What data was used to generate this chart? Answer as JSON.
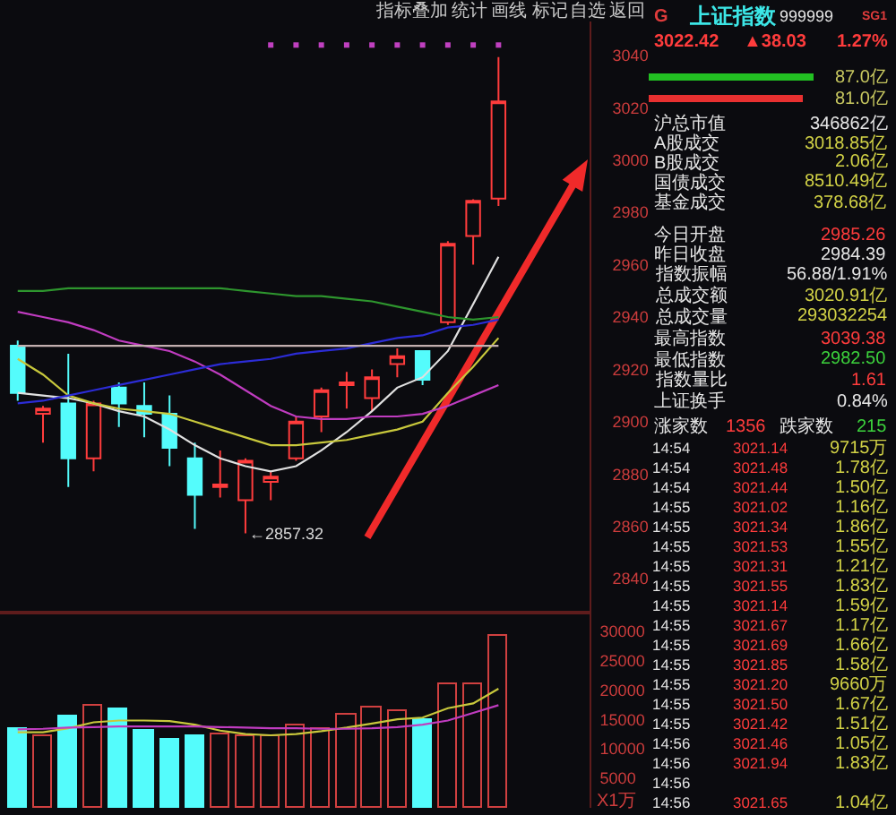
{
  "chart_data": [
    {
      "type": "candlestick",
      "categories": [
        null,
        null,
        null,
        null,
        null,
        null,
        null,
        null,
        null,
        null,
        null,
        null,
        null,
        null,
        null,
        null,
        null,
        null,
        null,
        null
      ],
      "ohlc": [
        [
          2929,
          2931,
          2908,
          2911
        ],
        [
          2903,
          2906,
          2892,
          2905
        ],
        [
          2907,
          2926,
          2875,
          2886
        ],
        [
          2886,
          2908,
          2881,
          2907
        ],
        [
          2913,
          2915,
          2898,
          2907
        ],
        [
          2906,
          2915,
          2894,
          2903
        ],
        [
          2903,
          2910,
          2883,
          2890
        ],
        [
          2886,
          2892,
          2859,
          2872
        ],
        [
          2875,
          2889,
          2871,
          2876
        ],
        [
          2870,
          2886,
          2857.32,
          2885
        ],
        [
          2877,
          2881,
          2870,
          2879
        ],
        [
          2886,
          2902,
          2885,
          2900
        ],
        [
          2902,
          2913,
          2896,
          2912
        ],
        [
          2914,
          2919,
          2905,
          2915
        ],
        [
          2909,
          2920,
          2904,
          2917
        ],
        [
          2922,
          2928,
          2917,
          2925
        ],
        [
          2927,
          2927,
          2914,
          2916
        ],
        [
          2938,
          2969,
          2937,
          2968
        ],
        [
          2971,
          2985,
          2960,
          2984.39
        ],
        [
          2985.26,
          3039.38,
          2982.5,
          3022.42
        ]
      ],
      "colors": [
        "#54fcfc",
        "#ff3c3c",
        "#54fcfc",
        "#ff3c3c",
        "#54fcfc",
        "#54fcfc",
        "#54fcfc",
        "#54fcfc",
        "#ff3c3c",
        "#ff3c3c",
        "#ff3c3c",
        "#ff3c3c",
        "#ff3c3c",
        "#ff3c3c",
        "#ff3c3c",
        "#ff3c3c",
        "#54fcfc",
        "#ff3c3c",
        "#ff3c3c",
        "#ff3c3c"
      ],
      "series": [
        {
          "type": "line",
          "color": "#e0e0e0",
          "values": [
            2911,
            2910,
            2909,
            2907,
            2904,
            2902,
            2897,
            2891,
            2886,
            2883,
            2881,
            2883,
            2889,
            2896,
            2904,
            2913,
            2917,
            2927,
            2945,
            2963
          ]
        },
        {
          "type": "line",
          "color": "#c8c83c",
          "values": [
            2924,
            2918,
            2910,
            2907,
            2905,
            2904,
            2903,
            2900,
            2897,
            2894,
            2891,
            2891,
            2892,
            2893,
            2895,
            2897,
            2900,
            2911,
            2921,
            2932
          ]
        },
        {
          "type": "line",
          "color": "#c03cc0",
          "values": [
            2942,
            2940,
            2938,
            2935,
            2931,
            2929,
            2927,
            2923,
            2918,
            2912,
            2906,
            2902,
            2901,
            2901,
            2902,
            2902,
            2903,
            2906,
            2910,
            2914
          ]
        },
        {
          "type": "line",
          "color": "#2e962e",
          "values": [
            2950,
            2950,
            2951,
            2951,
            2951,
            2951,
            2951,
            2951,
            2951,
            2950,
            2949,
            2948,
            2948,
            2947,
            2946,
            2944,
            2942,
            2940,
            2939,
            2940
          ]
        },
        {
          "type": "line",
          "color": "#2c2cd6",
          "values": [
            2907,
            2908,
            2910,
            2912,
            2914,
            2916,
            2918,
            2920,
            2922,
            2923,
            2924,
            2926,
            2927,
            2928,
            2930,
            2932,
            2933,
            2936,
            2937,
            2939
          ]
        },
        {
          "type": "line",
          "color": "#c4b0b0",
          "values": [
            2929,
            2929,
            2929,
            2929,
            2929,
            2929,
            2929,
            2929,
            2929,
            2929,
            2929,
            2929,
            2929,
            2929,
            2929,
            2929,
            2929,
            2929,
            2929,
            2929
          ]
        },
        {
          "type": "scatter",
          "color": "#c040c0",
          "marker": "square",
          "values": [
            null,
            null,
            null,
            null,
            null,
            null,
            null,
            null,
            null,
            null,
            3044,
            3044,
            3044,
            3044,
            3044,
            3044,
            3044,
            3044,
            3044,
            3044
          ]
        }
      ],
      "ylim": [
        2827,
        3053
      ],
      "yticks": [
        2840,
        2860,
        2880,
        2900,
        2920,
        2940,
        2960,
        2980,
        3000,
        3020,
        3040
      ],
      "tick_labels": "y",
      "annotations": [
        "←2857.32"
      ]
    },
    {
      "type": "bar",
      "categories": [
        null,
        null,
        null,
        null,
        null,
        null,
        null,
        null,
        null,
        null,
        null,
        null,
        null,
        null,
        null,
        null,
        null,
        null,
        null,
        null
      ],
      "series": [
        {
          "type": "bar",
          "colors": [
            "#54fcfc",
            "#d04040",
            "#54fcfc",
            "#d04040",
            "#54fcfc",
            "#54fcfc",
            "#54fcfc",
            "#54fcfc",
            "#d04040",
            "#d04040",
            "#d04040",
            "#d04040",
            "#d04040",
            "#d04040",
            "#d04040",
            "#d04040",
            "#54fcfc",
            "#d04040",
            "#d04040",
            "#d04040"
          ],
          "values": [
            13500,
            12100,
            15500,
            17400,
            16700,
            13100,
            11600,
            12100,
            12500,
            12300,
            12300,
            14000,
            13300,
            15800,
            16900,
            16400,
            14800,
            20900,
            20900,
            29100
          ]
        },
        {
          "type": "line",
          "color": "#c8c83c",
          "values": [
            12800,
            12800,
            13500,
            14500,
            14800,
            14800,
            14700,
            14100,
            13100,
            12500,
            12300,
            12500,
            13000,
            13600,
            14300,
            15000,
            15300,
            16900,
            17700,
            20200
          ]
        },
        {
          "type": "line",
          "color": "#c03cc0",
          "values": [
            13300,
            13400,
            13600,
            13700,
            13800,
            13800,
            13800,
            13800,
            13700,
            13600,
            13500,
            13500,
            13400,
            13400,
            13500,
            13700,
            14100,
            14800,
            16100,
            17400
          ]
        }
      ],
      "ylim": [
        0,
        33100
      ],
      "yticks": [
        5000,
        10000,
        15000,
        20000,
        25000,
        30000
      ],
      "ylabel": "X1万",
      "tick_labels": "y"
    },
    {
      "type": "bar",
      "orientation": "horizontal",
      "categories": [
        null,
        null
      ],
      "values": [
        87.0,
        81.0
      ],
      "colors": [
        "#22c022",
        "#e83030"
      ],
      "value_labels": [
        "87.0亿",
        "81.0亿"
      ]
    },
    {
      "type": "other",
      "annotations": [
        "指标",
        "叠加",
        "统计",
        "画线",
        "标记",
        "自选",
        "返回",
        "G",
        "上证指数",
        "999999",
        "SG1",
        "3022.42",
        "▲38.03",
        "1.27%",
        "沪总市值",
        "346862亿",
        "A股成交",
        "3018.85亿",
        "B股成交",
        "2.06亿",
        "国债成交",
        "8510.49亿",
        "基金成交",
        "378.68亿",
        "今日开盘",
        "2985.26",
        "昨日收盘",
        "2984.39",
        "指数振幅",
        "56.88/1.91%",
        "总成交额",
        "3020.91亿",
        "总成交量",
        "293032254",
        "最高指数",
        "3039.38",
        "最低指数",
        "2982.50",
        "指数量比",
        "1.61",
        "上证换手",
        "0.84%",
        "涨家数",
        "1356",
        "跌家数",
        "215",
        "14:54",
        "3021.14",
        "9715万",
        "14:54",
        "3021.48",
        "1.78亿",
        "14:54",
        "3021.44",
        "1.50亿",
        "14:55",
        "3021.02",
        "1.16亿",
        "14:55",
        "3021.34",
        "1.86亿",
        "14:55",
        "3021.53",
        "1.55亿",
        "14:55",
        "3021.31",
        "1.21亿",
        "14:55",
        "3021.55",
        "1.83亿",
        "14:55",
        "3021.14",
        "1.59亿",
        "14:55",
        "3021.67",
        "1.17亿",
        "14:55",
        "3021.69",
        "1.66亿",
        "14:55",
        "3021.85",
        "1.58亿",
        "14:55",
        "3021.20",
        "9660万",
        "14:55",
        "3021.50",
        "1.67亿",
        "14:55",
        "3021.42",
        "1.51亿",
        "14:56",
        "3021.46",
        "1.05亿",
        "14:56",
        "3021.94",
        "1.83亿",
        "14:56",
        null,
        null,
        "14:56",
        "3021.65",
        "1.04亿"
      ],
      "colors": [
        "#c8c8c8",
        "#c8c8c8",
        "#c8c8c8",
        "#c8c8c8",
        "#c8c8c8",
        "#c8c8c8",
        "#c8c8c8",
        "#e03c3c",
        "#3ce6e6",
        "#e6e6e6",
        "#e03c3c",
        "#ff3c3c",
        "#ff3c3c",
        "#ff3c3c",
        "#e6e6e6",
        "#e6e6e6",
        "#e6e6e6",
        "#d2d246",
        "#e6e6e6",
        "#d2d246",
        "#e6e6e6",
        "#d2d246",
        "#e6e6e6",
        "#d2d246",
        "#e6e6e6",
        "#ff3c3c",
        "#e6e6e6",
        "#e6e6e6",
        "#e6e6e6",
        "#e6e6e6",
        "#e6e6e6",
        "#d2d246",
        "#e6e6e6",
        "#d2d246",
        "#e6e6e6",
        "#ff3c3c",
        "#e6e6e6",
        "#3cd23c",
        "#e6e6e6",
        "#ff3c3c",
        "#e6e6e6",
        "#e6e6e6",
        "#e6e6e6",
        "#ff3c3c",
        "#e6e6e6",
        "#3cd23c",
        "#e6e6e6",
        "#ff3c3c",
        "#d2d246",
        "#e6e6e6",
        "#ff3c3c",
        "#d2d246",
        "#e6e6e6",
        "#ff3c3c",
        "#d2d246",
        "#e6e6e6",
        "#ff3c3c",
        "#d2d246",
        "#e6e6e6",
        "#ff3c3c",
        "#d2d246",
        "#e6e6e6",
        "#ff3c3c",
        "#d2d246",
        "#e6e6e6",
        "#ff3c3c",
        "#d2d246",
        "#e6e6e6",
        "#ff3c3c",
        "#d2d246",
        "#e6e6e6",
        "#ff3c3c",
        "#d2d246",
        "#e6e6e6",
        "#ff3c3c",
        "#d2d246",
        "#e6e6e6",
        "#ff3c3c",
        "#d2d246",
        "#e6e6e6",
        "#ff3c3c",
        "#d2d246",
        "#e6e6e6",
        "#ff3c3c",
        "#d2d246",
        "#e6e6e6",
        "#ff3c3c",
        "#d2d246",
        "#e6e6e6",
        "#ff3c3c",
        "#d2d246",
        "#e6e6e6",
        "#ff3c3c",
        "#d2d246",
        "#e6e6e6",
        "#ff3c3c",
        "#d2d246",
        "#e6e6e6",
        "#ff3c3c",
        "#d2d246",
        "#e6e6e6",
        "#ff3c3c",
        "#d2d246",
        "#e6e6e6",
        "#ff3c3c",
        "#d2d246"
      ]
    }
  ]
}
